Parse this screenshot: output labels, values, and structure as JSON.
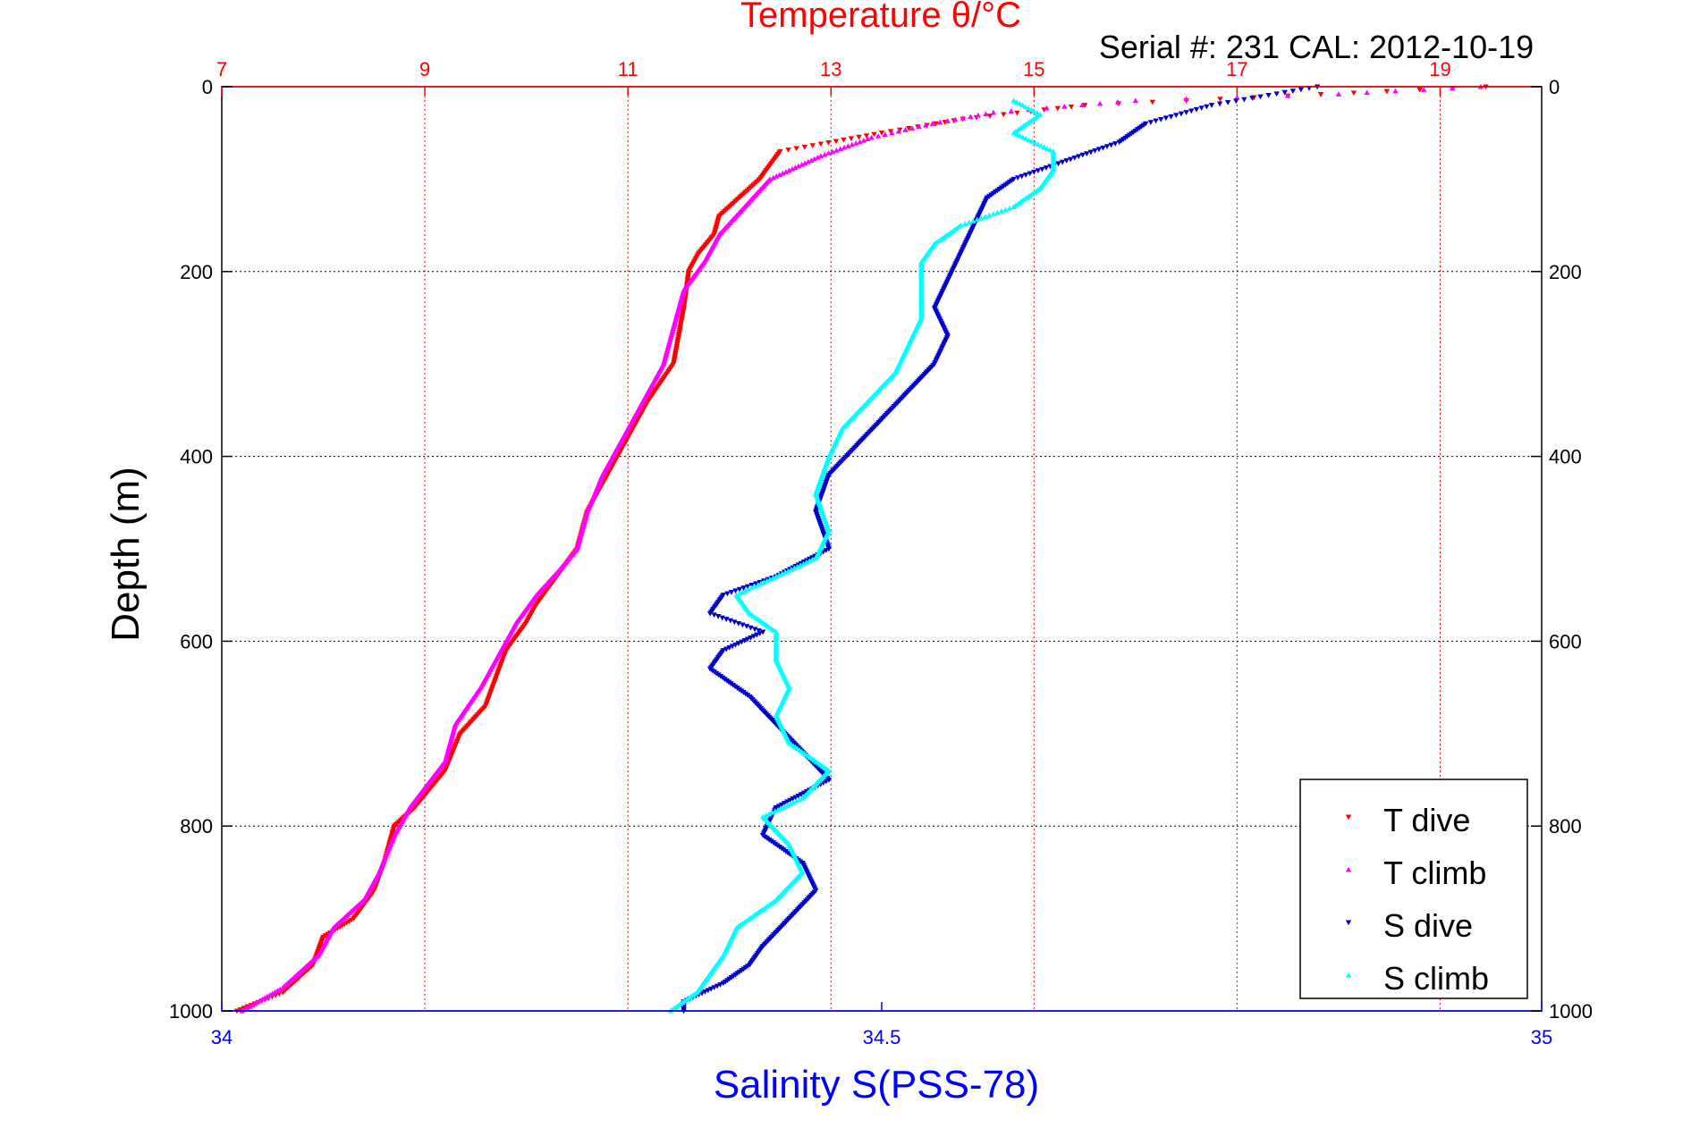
{
  "chart_data": {
    "type": "scatter",
    "title": "Temperature θ/°C",
    "subtitle": "Serial #: 231  CAL: 2012-10-19",
    "ylabel": "Depth (m)",
    "xlabel": "Salinity S(PSS-78)",
    "ylim": [
      1000,
      0
    ],
    "y_ticks": [
      "0",
      "200",
      "400",
      "600",
      "800",
      "1000"
    ],
    "x_temp_range": [
      7,
      20
    ],
    "x_temp_ticks": [
      "7",
      "9",
      "11",
      "13",
      "15",
      "17",
      "19"
    ],
    "x_sal_range": [
      34,
      35
    ],
    "x_sal_ticks": [
      "34",
      "34.5",
      "35"
    ],
    "grid": true,
    "legend_position": "bottom-right",
    "colors": {
      "temperature_axis": "#ff0000",
      "salinity_axis": "#0000ff",
      "t_dive": "#ff0000",
      "t_climb": "#ff00ff",
      "s_dive": "#0000cd",
      "s_climb": "#00ffff",
      "grid_temp": "#ff0000",
      "grid_depth": "#000000"
    },
    "series": [
      {
        "name": "T dive",
        "axis": "temperature",
        "color": "#ff0000",
        "points": [
          [
            19.45,
            0
          ],
          [
            17.5,
            10
          ],
          [
            15.5,
            20
          ],
          [
            14.3,
            35
          ],
          [
            13.5,
            50
          ],
          [
            12.9,
            62
          ],
          [
            12.5,
            70
          ],
          [
            12.3,
            100
          ],
          [
            12.1,
            120
          ],
          [
            11.9,
            140
          ],
          [
            11.85,
            160
          ],
          [
            11.7,
            180
          ],
          [
            11.6,
            200
          ],
          [
            11.55,
            240
          ],
          [
            11.5,
            270
          ],
          [
            11.45,
            300
          ],
          [
            11.2,
            340
          ],
          [
            11.0,
            380
          ],
          [
            10.8,
            420
          ],
          [
            10.6,
            460
          ],
          [
            10.5,
            500
          ],
          [
            10.3,
            530
          ],
          [
            10.1,
            560
          ],
          [
            10.0,
            580
          ],
          [
            9.8,
            610
          ],
          [
            9.7,
            640
          ],
          [
            9.6,
            670
          ],
          [
            9.35,
            700
          ],
          [
            9.2,
            740
          ],
          [
            8.9,
            780
          ],
          [
            8.7,
            800
          ],
          [
            8.6,
            840
          ],
          [
            8.5,
            870
          ],
          [
            8.3,
            900
          ],
          [
            8.0,
            920
          ],
          [
            7.9,
            950
          ],
          [
            7.6,
            980
          ],
          [
            7.15,
            1000
          ]
        ]
      },
      {
        "name": "T climb",
        "axis": "temperature",
        "color": "#ff00ff",
        "points": [
          [
            19.4,
            0
          ],
          [
            18.0,
            8
          ],
          [
            16.0,
            15
          ],
          [
            14.6,
            28
          ],
          [
            14.0,
            40
          ],
          [
            13.4,
            55
          ],
          [
            12.9,
            75
          ],
          [
            12.4,
            100
          ],
          [
            12.15,
            130
          ],
          [
            11.9,
            160
          ],
          [
            11.75,
            190
          ],
          [
            11.55,
            220
          ],
          [
            11.45,
            260
          ],
          [
            11.35,
            300
          ],
          [
            11.15,
            340
          ],
          [
            10.95,
            380
          ],
          [
            10.75,
            420
          ],
          [
            10.6,
            460
          ],
          [
            10.5,
            500
          ],
          [
            10.35,
            520
          ],
          [
            10.1,
            550
          ],
          [
            9.9,
            580
          ],
          [
            9.7,
            620
          ],
          [
            9.55,
            650
          ],
          [
            9.3,
            690
          ],
          [
            9.2,
            730
          ],
          [
            8.85,
            780
          ],
          [
            8.7,
            810
          ],
          [
            8.55,
            850
          ],
          [
            8.4,
            880
          ],
          [
            8.1,
            910
          ],
          [
            7.95,
            940
          ],
          [
            7.6,
            975
          ],
          [
            7.2,
            1000
          ]
        ]
      },
      {
        "name": "S dive",
        "axis": "salinity",
        "color": "#0000cd",
        "points": [
          [
            34.83,
            0
          ],
          [
            34.75,
            20
          ],
          [
            34.7,
            40
          ],
          [
            34.68,
            60
          ],
          [
            34.64,
            80
          ],
          [
            34.6,
            100
          ],
          [
            34.58,
            120
          ],
          [
            34.57,
            150
          ],
          [
            34.56,
            180
          ],
          [
            34.55,
            210
          ],
          [
            34.54,
            240
          ],
          [
            34.55,
            270
          ],
          [
            34.54,
            300
          ],
          [
            34.52,
            330
          ],
          [
            34.5,
            360
          ],
          [
            34.48,
            390
          ],
          [
            34.46,
            420
          ],
          [
            34.45,
            460
          ],
          [
            34.46,
            500
          ],
          [
            34.42,
            530
          ],
          [
            34.38,
            550
          ],
          [
            34.37,
            570
          ],
          [
            34.41,
            590
          ],
          [
            34.38,
            610
          ],
          [
            34.37,
            630
          ],
          [
            34.4,
            660
          ],
          [
            34.42,
            690
          ],
          [
            34.44,
            720
          ],
          [
            34.46,
            750
          ],
          [
            34.42,
            780
          ],
          [
            34.41,
            810
          ],
          [
            34.44,
            840
          ],
          [
            34.45,
            870
          ],
          [
            34.43,
            900
          ],
          [
            34.41,
            930
          ],
          [
            34.4,
            950
          ],
          [
            34.38,
            970
          ],
          [
            34.35,
            990
          ],
          [
            34.35,
            1000
          ]
        ]
      },
      {
        "name": "S climb",
        "axis": "salinity",
        "color": "#00ffff",
        "points": [
          [
            34.6,
            15
          ],
          [
            34.62,
            30
          ],
          [
            34.6,
            50
          ],
          [
            34.63,
            70
          ],
          [
            34.63,
            90
          ],
          [
            34.62,
            110
          ],
          [
            34.6,
            130
          ],
          [
            34.56,
            150
          ],
          [
            34.54,
            170
          ],
          [
            34.53,
            190
          ],
          [
            34.53,
            220
          ],
          [
            34.53,
            250
          ],
          [
            34.52,
            280
          ],
          [
            34.51,
            310
          ],
          [
            34.49,
            340
          ],
          [
            34.47,
            370
          ],
          [
            34.46,
            400
          ],
          [
            34.45,
            440
          ],
          [
            34.46,
            480
          ],
          [
            34.45,
            510
          ],
          [
            34.42,
            530
          ],
          [
            34.39,
            550
          ],
          [
            34.4,
            570
          ],
          [
            34.42,
            590
          ],
          [
            34.42,
            620
          ],
          [
            34.43,
            650
          ],
          [
            34.42,
            680
          ],
          [
            34.43,
            710
          ],
          [
            34.46,
            740
          ],
          [
            34.44,
            770
          ],
          [
            34.41,
            790
          ],
          [
            34.43,
            820
          ],
          [
            34.44,
            850
          ],
          [
            34.42,
            880
          ],
          [
            34.39,
            910
          ],
          [
            34.38,
            940
          ],
          [
            34.37,
            960
          ],
          [
            34.36,
            980
          ],
          [
            34.34,
            1000
          ]
        ]
      }
    ]
  }
}
